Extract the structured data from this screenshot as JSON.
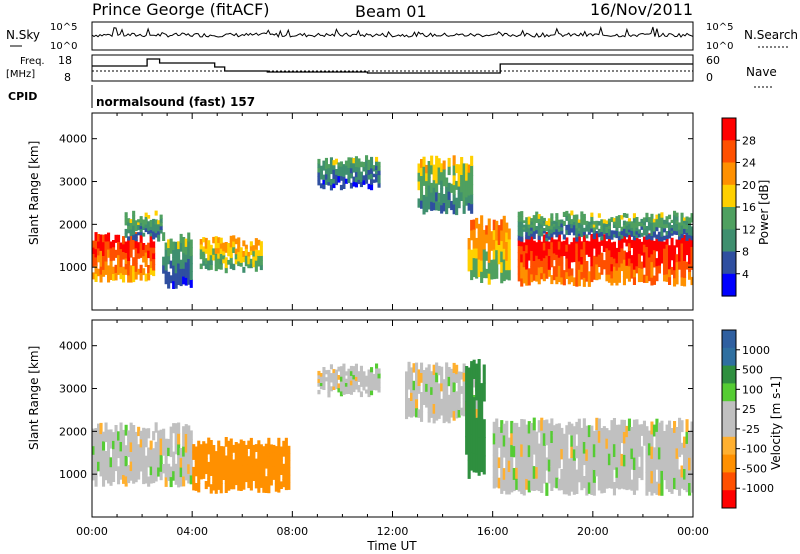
{
  "header": {
    "station": "Prince George (fitACF)",
    "beam": "Beam 01",
    "date": "16/Nov/2011"
  },
  "sky_panel": {
    "left_label": "N.Sky",
    "left_ticks": [
      "10^5",
      "10^0"
    ],
    "right_ticks": [
      "10^5",
      "10^0"
    ],
    "right_label": "N.Search"
  },
  "freq_panel": {
    "left_label_1": "Freq.",
    "left_label_2": "[MHz]",
    "left_ticks": [
      "18",
      "8"
    ],
    "right_ticks": [
      "60",
      "0"
    ],
    "right_label": "Nave"
  },
  "cpid": {
    "label": "CPID",
    "text": "normalsound (fast) 157"
  },
  "colors": {
    "power_scale": [
      "#0000ff",
      "#2f4fa0",
      "#3f8f6f",
      "#4fa060",
      "#ffd000",
      "#ff9000",
      "#ff5000",
      "#ff0000"
    ],
    "velocity_scale": [
      "#ff0000",
      "#ff5000",
      "#ff9000",
      "#ffb030",
      "#c0c0c0",
      "#c0c0c0",
      "#55cc33",
      "#2f8f3f",
      "#2f5fa0",
      "#0000ff"
    ]
  },
  "chart_data": [
    {
      "type": "heatmap",
      "title": "Power",
      "ylabel": "Slant Range [km]",
      "ylim": [
        0,
        4600
      ],
      "yticks": [
        "4000",
        "3000",
        "2000",
        "1000"
      ],
      "colorbar": {
        "label": "Power [dB]",
        "ticks": [
          "28",
          "24",
          "20",
          "16",
          "12",
          "8",
          "4"
        ],
        "range": [
          0,
          32
        ]
      },
      "regions": [
        {
          "t_start_h": 0.0,
          "t_end_h": 2.5,
          "r_min_km": 750,
          "r_max_km": 1700,
          "level_db": 26
        },
        {
          "t_start_h": 1.3,
          "t_end_h": 2.8,
          "r_min_km": 1700,
          "r_max_km": 2200,
          "level_db": 12
        },
        {
          "t_start_h": 2.8,
          "t_end_h": 4.0,
          "r_min_km": 600,
          "r_max_km": 1700,
          "level_db": 10
        },
        {
          "t_start_h": 4.3,
          "t_end_h": 6.8,
          "r_min_km": 950,
          "r_max_km": 1650,
          "level_db": 18
        },
        {
          "t_start_h": 9.0,
          "t_end_h": 11.5,
          "r_min_km": 2900,
          "r_max_km": 3500,
          "level_db": 10
        },
        {
          "t_start_h": 13.0,
          "t_end_h": 15.2,
          "r_min_km": 2300,
          "r_max_km": 3500,
          "level_db": 14
        },
        {
          "t_start_h": 15.0,
          "t_end_h": 16.7,
          "r_min_km": 700,
          "r_max_km": 2100,
          "level_db": 20
        },
        {
          "t_start_h": 17.0,
          "t_end_h": 24.0,
          "r_min_km": 650,
          "r_max_km": 1700,
          "level_db": 28
        },
        {
          "t_start_h": 17.0,
          "t_end_h": 24.0,
          "r_min_km": 1700,
          "r_max_km": 2200,
          "level_db": 12
        }
      ]
    },
    {
      "type": "heatmap",
      "title": "Velocity",
      "ylabel": "Slant Range [km]",
      "xlabel": "Time UT",
      "ylim": [
        0,
        4600
      ],
      "yticks": [
        "4000",
        "3000",
        "2000",
        "1000"
      ],
      "xticks": [
        "00:00",
        "04:00",
        "08:00",
        "12:00",
        "16:00",
        "20:00",
        "00:00"
      ],
      "colorbar": {
        "label": "Velocity [m s-1]",
        "ticks": [
          "1000",
          "500",
          "100",
          "25",
          "-25",
          "-100",
          "-500",
          "-1000"
        ]
      },
      "regions": [
        {
          "t_start_h": 0.0,
          "t_end_h": 4.0,
          "r_min_km": 800,
          "r_max_km": 2100,
          "velocity": 0
        },
        {
          "t_start_h": 4.0,
          "t_end_h": 7.9,
          "r_min_km": 650,
          "r_max_km": 1750,
          "velocity": -150
        },
        {
          "t_start_h": 9.0,
          "t_end_h": 11.5,
          "r_min_km": 2900,
          "r_max_km": 3500,
          "velocity": 0
        },
        {
          "t_start_h": 12.5,
          "t_end_h": 15.5,
          "r_min_km": 2300,
          "r_max_km": 3500,
          "velocity": 0
        },
        {
          "t_start_h": 14.9,
          "t_end_h": 15.7,
          "r_min_km": 1000,
          "r_max_km": 3600,
          "velocity": 150
        },
        {
          "t_start_h": 16.0,
          "t_end_h": 24.0,
          "r_min_km": 600,
          "r_max_km": 2200,
          "velocity": 0
        }
      ]
    }
  ]
}
